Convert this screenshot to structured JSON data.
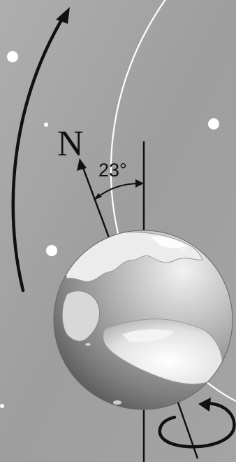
{
  "labels": {
    "north": "N",
    "tilt_angle": "23°"
  },
  "icons": {
    "orbit_arrow": "curved-arrow-up-icon",
    "rotation_arrow": "circular-rotation-arrow-icon"
  },
  "colors": {
    "background_light": "#b9b9b9",
    "background_dark": "#7a7a7a",
    "orbit_path": "#ffffff",
    "stars": "#ffffff",
    "lines": "#111111"
  }
}
